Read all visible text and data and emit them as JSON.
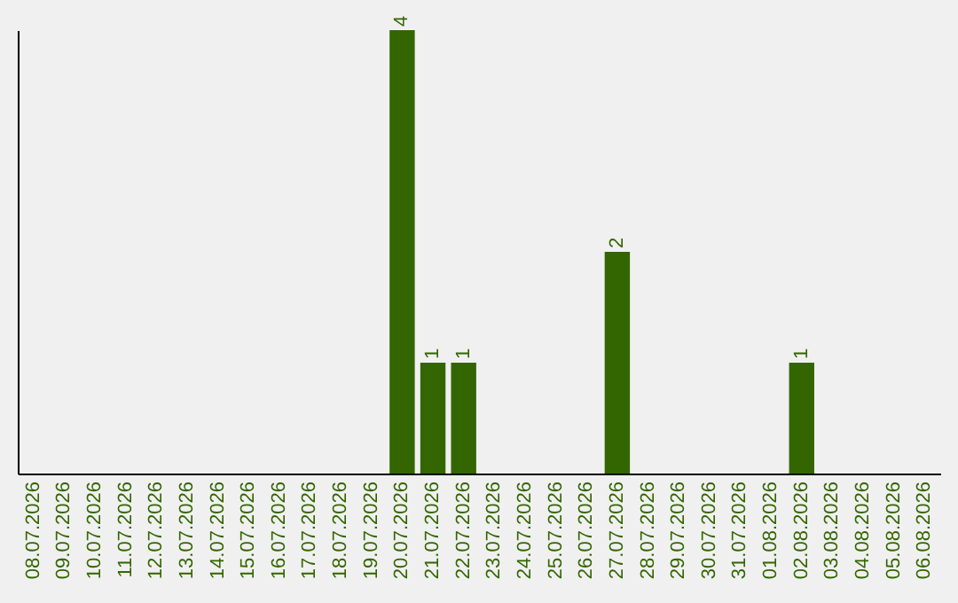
{
  "chart_data": {
    "type": "bar",
    "categories": [
      "08.07.2026",
      "09.07.2026",
      "10.07.2026",
      "11.07.2026",
      "12.07.2026",
      "13.07.2026",
      "14.07.2026",
      "15.07.2026",
      "16.07.2026",
      "17.07.2026",
      "18.07.2026",
      "19.07.2026",
      "20.07.2026",
      "21.07.2026",
      "22.07.2026",
      "23.07.2026",
      "24.07.2026",
      "25.07.2026",
      "26.07.2026",
      "27.07.2026",
      "28.07.2026",
      "29.07.2026",
      "30.07.2026",
      "31.07.2026",
      "01.08.2026",
      "02.08.2026",
      "03.08.2026",
      "04.08.2026",
      "05.08.2026",
      "06.08.2026"
    ],
    "values": [
      null,
      null,
      null,
      null,
      null,
      null,
      null,
      null,
      null,
      null,
      null,
      null,
      4,
      1,
      1,
      null,
      null,
      null,
      null,
      2,
      null,
      null,
      null,
      null,
      null,
      1,
      null,
      null,
      null,
      null
    ],
    "color": "#336600",
    "data_labels": true,
    "tick_labels": "x",
    "grid": false
  }
}
